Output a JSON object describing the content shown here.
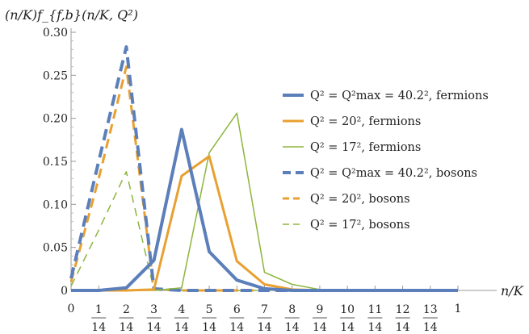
{
  "chart_data": {
    "type": "line",
    "ylabel": "(n/K)f_{f,b}(n/K, Q²)",
    "xlabel": "n/K",
    "xlim": [
      0,
      1
    ],
    "ylim": [
      0,
      0.3
    ],
    "grid": false,
    "legend_position": "right",
    "y_ticks": [
      "0",
      "0.05",
      "0.10",
      "0.15",
      "0.20",
      "0.25",
      "0.30"
    ],
    "x_ticks": [
      {
        "num": "0",
        "den": ""
      },
      {
        "num": "1",
        "den": "14"
      },
      {
        "num": "2",
        "den": "14"
      },
      {
        "num": "3",
        "den": "14"
      },
      {
        "num": "4",
        "den": "14"
      },
      {
        "num": "5",
        "den": "14"
      },
      {
        "num": "6",
        "den": "14"
      },
      {
        "num": "7",
        "den": "14"
      },
      {
        "num": "8",
        "den": "14"
      },
      {
        "num": "9",
        "den": "14"
      },
      {
        "num": "10",
        "den": "14"
      },
      {
        "num": "11",
        "den": "14"
      },
      {
        "num": "12",
        "den": "14"
      },
      {
        "num": "13",
        "den": "14"
      },
      {
        "num": "1",
        "den": ""
      }
    ],
    "x": [
      0,
      0.0714,
      0.1429,
      0.2143,
      0.2857,
      0.3571,
      0.4286,
      0.5,
      0.5714,
      0.6429,
      0.7143,
      0.7857,
      0.8571,
      0.9286,
      1.0
    ],
    "series": [
      {
        "name": "Q² = Q²max = 40.2², fermions",
        "color": "#5b7fba",
        "width": 4,
        "dash": "",
        "values": [
          0,
          0,
          0.003,
          0.035,
          0.187,
          0.045,
          0.012,
          0.002,
          0,
          0,
          0,
          0,
          0,
          0,
          0
        ]
      },
      {
        "name": "Q² = 20², fermions",
        "color": "#e8a030",
        "width": 3,
        "dash": "",
        "values": [
          0,
          0,
          0,
          0.001,
          0.133,
          0.156,
          0.034,
          0.007,
          0.001,
          0,
          0,
          0,
          0,
          0,
          0
        ]
      },
      {
        "name": "Q² = 17², fermions",
        "color": "#8db53c",
        "width": 1.5,
        "dash": "",
        "values": [
          0,
          0,
          0,
          0,
          0.003,
          0.16,
          0.206,
          0.021,
          0.007,
          0.001,
          0,
          0,
          0,
          0,
          0
        ]
      },
      {
        "name": "Q² = Q²max = 40.2², bosons",
        "color": "#5b7fba",
        "width": 4,
        "dash": "14,8",
        "values": [
          0.014,
          0.15,
          0.283,
          0.002,
          0,
          0,
          0,
          0,
          0,
          0,
          0,
          0,
          0,
          0,
          0
        ]
      },
      {
        "name": "Q² = 20², bosons",
        "color": "#e8a030",
        "width": 3,
        "dash": "12,7",
        "values": [
          0.01,
          0.13,
          0.26,
          0.001,
          0,
          0,
          0,
          0,
          0,
          0,
          0,
          0,
          0,
          0,
          0
        ]
      },
      {
        "name": "Q² = 17², bosons",
        "color": "#8db53c",
        "width": 1.5,
        "dash": "10,7",
        "values": [
          0.005,
          0.07,
          0.138,
          0.001,
          0,
          0,
          0,
          0,
          0,
          0,
          0,
          0,
          0,
          0,
          0
        ]
      }
    ]
  }
}
